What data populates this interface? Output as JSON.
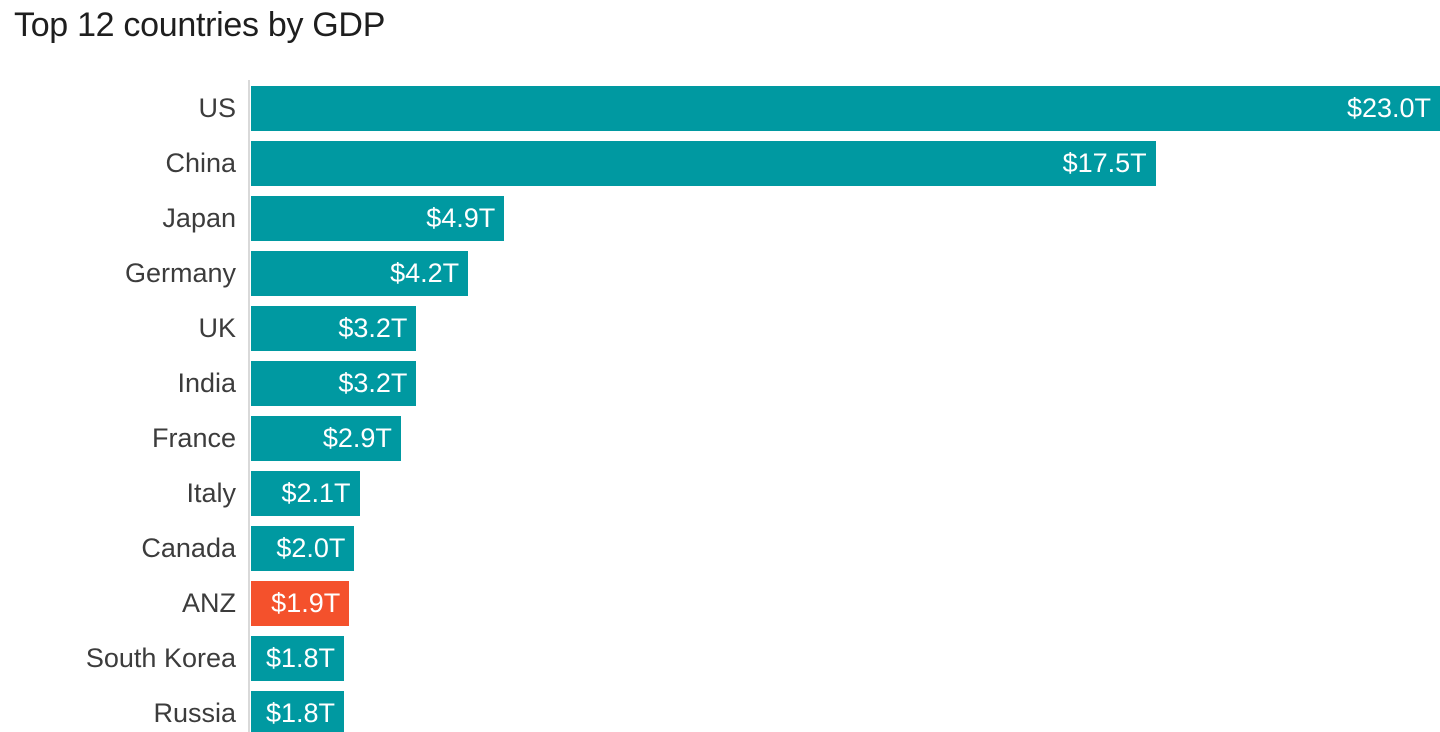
{
  "title": "Top 12 countries by GDP",
  "colors": {
    "bar": "#0099a1",
    "highlight": "#f4512c",
    "title_text": "#1e1e1e",
    "category_text": "#3c3c3c",
    "value_text": "#ffffff",
    "axis_line": "#d9d9d9",
    "background": "#ffffff"
  },
  "chart_data": {
    "type": "bar",
    "orientation": "horizontal",
    "title": "Top 12 countries by GDP",
    "categories": [
      "US",
      "China",
      "Japan",
      "Germany",
      "UK",
      "India",
      "France",
      "Italy",
      "Canada",
      "ANZ",
      "South Korea",
      "Russia"
    ],
    "values": [
      23.0,
      17.5,
      4.9,
      4.2,
      3.2,
      3.2,
      2.9,
      2.1,
      2.0,
      1.9,
      1.8,
      1.8
    ],
    "value_labels": [
      "$23.0T",
      "$17.5T",
      "$4.9T",
      "$4.2T",
      "$3.2T",
      "$3.2T",
      "$2.9T",
      "$2.1T",
      "$2.0T",
      "$1.9T",
      "$1.8T",
      "$1.8T"
    ],
    "highlighted_category": "ANZ",
    "xlim": [
      0,
      23.0
    ],
    "value_label_position": "inside-end",
    "grid": false,
    "legend": false
  }
}
